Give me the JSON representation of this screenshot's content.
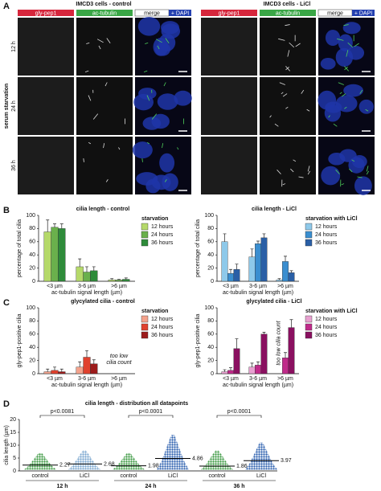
{
  "panel_labels": [
    "A",
    "B",
    "C",
    "D"
  ],
  "panel_a": {
    "blocks": [
      {
        "title": "IMCD3 cells - control",
        "channels": [
          "gly-pep1",
          "ac-tubulin",
          "merge",
          "+ DAPI"
        ]
      },
      {
        "title": "IMCD3 cells - LiCl",
        "channels": [
          "gly-pep1",
          "ac-tubulin",
          "merge",
          "+ DAPI"
        ]
      }
    ],
    "side_label": "serum starvation",
    "rows": [
      "12 h",
      "24 h",
      "36 h"
    ]
  },
  "chart_data": [
    {
      "type": "bar",
      "title": "cilia length - control",
      "ylabel": "percentage of total cilia",
      "xlabel": "ac-tubulin signal length (µm)",
      "legend_title": "starvation",
      "categories": [
        "<3 µm",
        "3-6 µm",
        ">6 µm"
      ],
      "ylim": [
        0,
        100
      ],
      "yticks": [
        0,
        20,
        40,
        60,
        80,
        100
      ],
      "series": [
        {
          "name": "12 hours",
          "color": "#b5d96a",
          "values": [
            75,
            22,
            2
          ],
          "errors": [
            18,
            12,
            2
          ]
        },
        {
          "name": "24 hours",
          "color": "#6ab04c",
          "values": [
            82,
            14,
            2
          ],
          "errors": [
            5,
            8,
            1
          ]
        },
        {
          "name": "36 hours",
          "color": "#2e8b3a",
          "values": [
            80,
            16,
            3
          ],
          "errors": [
            7,
            6,
            2
          ]
        }
      ]
    },
    {
      "type": "bar",
      "title": "cilia length - LiCl",
      "ylabel": "percentage of total cilia",
      "xlabel": "ac-tubulin signal length (µm)",
      "legend_title": "starvation with LiCl",
      "categories": [
        "<3 µm",
        "3-6 µm",
        ">6 µm"
      ],
      "ylim": [
        0,
        100
      ],
      "yticks": [
        0,
        20,
        40,
        60,
        80,
        100
      ],
      "series": [
        {
          "name": "12 hours",
          "color": "#8ec9ea",
          "values": [
            60,
            37,
            2
          ],
          "errors": [
            12,
            12,
            2
          ]
        },
        {
          "name": "24 hours",
          "color": "#3a8ed0",
          "values": [
            12,
            57,
            30
          ],
          "errors": [
            6,
            4,
            8
          ]
        },
        {
          "name": "36 hours",
          "color": "#2a5fa6",
          "values": [
            18,
            66,
            13
          ],
          "errors": [
            8,
            6,
            3
          ]
        }
      ]
    },
    {
      "type": "bar",
      "title": "glycylated cilia - control",
      "ylabel": "gly-pep1-positive cilia",
      "xlabel": "ac-tubulin signal length (µm)",
      "legend_title": "starvation",
      "categories": [
        "<3 µm",
        "3-6 µm",
        ">6 µm"
      ],
      "ylim": [
        0,
        100
      ],
      "yticks": [
        0,
        20,
        40,
        60,
        80,
        100
      ],
      "annotation": [
        "too low",
        "cilia count"
      ],
      "series": [
        {
          "name": "12 hours",
          "color": "#f4a28c",
          "values": [
            3,
            10,
            null
          ],
          "errors": [
            4,
            8,
            null
          ]
        },
        {
          "name": "24 hours",
          "color": "#e0412e",
          "values": [
            5,
            25,
            null
          ],
          "errors": [
            5,
            10,
            null
          ]
        },
        {
          "name": "36 hours",
          "color": "#9c1b1b",
          "values": [
            3,
            15,
            null
          ],
          "errors": [
            4,
            6,
            null
          ]
        }
      ]
    },
    {
      "type": "bar",
      "title": "glycylated cilia - LiCl",
      "ylabel": "gly-pep1-positive cilia",
      "xlabel": "ac-tubulin signal length (µm)",
      "legend_title": "starvation with LiCl",
      "categories": [
        "<3 µm",
        "3-6 µm",
        ">6 µm"
      ],
      "ylim": [
        0,
        100
      ],
      "yticks": [
        0,
        20,
        40,
        60,
        80,
        100
      ],
      "annotation": [
        "too low cilia count"
      ],
      "series": [
        {
          "name": "12 hours",
          "color": "#e8a0d0",
          "values": [
            3,
            10,
            null
          ],
          "errors": [
            3,
            6,
            null
          ]
        },
        {
          "name": "24 hours",
          "color": "#c02a8a",
          "values": [
            5,
            13,
            24
          ],
          "errors": [
            4,
            5,
            8
          ]
        },
        {
          "name": "36 hours",
          "color": "#8a1060",
          "values": [
            38,
            60,
            70
          ],
          "errors": [
            15,
            3,
            12
          ]
        }
      ]
    },
    {
      "type": "dotplot",
      "title": "cilia length - distribution all datapoints",
      "ylabel": "cilia length (µm)",
      "ylim": [
        0,
        20
      ],
      "yticks": [
        0,
        5,
        10,
        15,
        20
      ],
      "categories": [
        "control",
        "LiCl",
        "control",
        "LiCl",
        "control",
        "LiCl"
      ],
      "groups": [
        "12 h",
        "24 h",
        "36 h"
      ],
      "p_values": [
        "p<0.0081",
        "p<0.0001",
        "p<0.0001"
      ],
      "values": [
        2.27,
        2.68,
        1.98,
        4.86,
        1.86,
        3.97
      ],
      "ranges": [
        [
          0.5,
          7
        ],
        [
          0.5,
          8
        ],
        [
          0.5,
          7
        ],
        [
          0.5,
          14
        ],
        [
          0.5,
          8
        ],
        [
          0.5,
          11
        ]
      ],
      "colors": [
        "#3f9a45",
        "#7aa6cf",
        "#3f9a45",
        "#2f62b0",
        "#3f9a45",
        "#2f62b0"
      ]
    }
  ]
}
